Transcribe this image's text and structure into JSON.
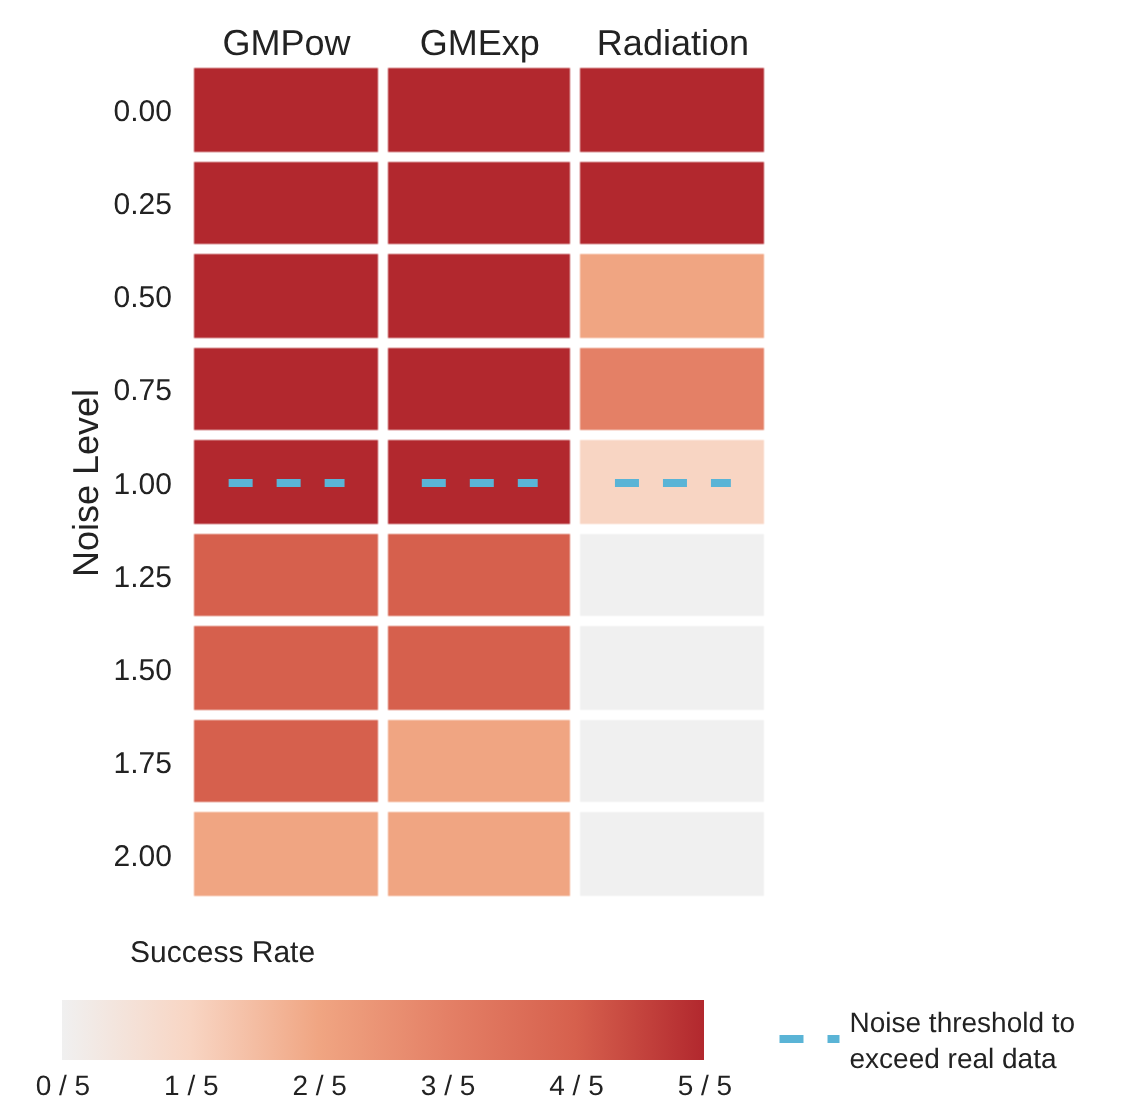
{
  "chart_data": {
    "type": "heatmap",
    "categories": [
      "GMPow",
      "GMExp",
      "Radiation"
    ],
    "y_categories": [
      "0.00",
      "0.25",
      "0.50",
      "0.75",
      "1.00",
      "1.25",
      "1.50",
      "1.75",
      "2.00"
    ],
    "ylabel": "Noise Level",
    "cells": [
      [
        1,
        1,
        1
      ],
      [
        1,
        1,
        1
      ],
      [
        1,
        1,
        0.4
      ],
      [
        1,
        1,
        0.6
      ],
      [
        1,
        1,
        0.2
      ],
      [
        0.8,
        0.8,
        0
      ],
      [
        0.8,
        0.8,
        0
      ],
      [
        0.8,
        0.4,
        0
      ],
      [
        0.4,
        0.4,
        0
      ]
    ],
    "clabel": "Success Rate",
    "clim": [
      0,
      1
    ],
    "cticks": [
      {
        "value": 0,
        "label": "0 / 5"
      },
      {
        "value": 0.2,
        "label": "1 / 5"
      },
      {
        "value": 0.4,
        "label": "2 / 5"
      },
      {
        "value": 0.6,
        "label": "3 / 5"
      },
      {
        "value": 0.8,
        "label": "4 / 5"
      },
      {
        "value": 1,
        "label": "5 / 5"
      }
    ],
    "colors": [
      "#f0f0f0",
      "#f8d5c3",
      "#f0a582",
      "#e48066",
      "#d6604d",
      "#b2282e"
    ],
    "ref_lines": [
      {
        "axis": "y",
        "value": "1.00",
        "label": "Noise threshold to\nexceed real data",
        "color": "#5ab4d6",
        "line_style": "dashed"
      }
    ],
    "legend": "bottom right"
  }
}
